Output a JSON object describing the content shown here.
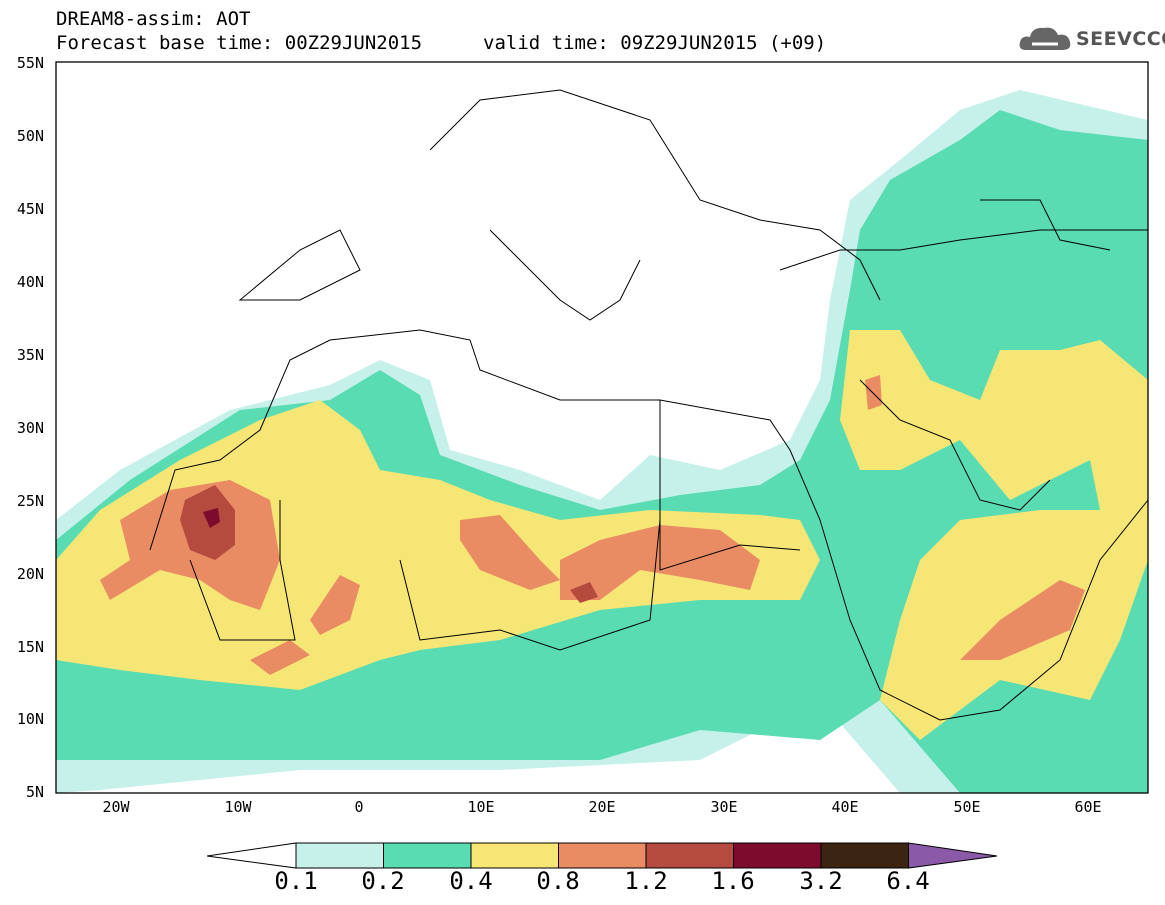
{
  "header": {
    "title_line1": "DREAM8-assim: AOT",
    "base_time": "Forecast base time: 00Z29JUN2015",
    "valid_time": "valid time: 09Z29JUN2015 (+09)",
    "logo_text": "SEEVCCC"
  },
  "map": {
    "lat_labels": [
      "55N",
      "50N",
      "45N",
      "40N",
      "35N",
      "30N",
      "25N",
      "20N",
      "15N",
      "10N",
      "5N"
    ],
    "lon_labels": [
      "20W",
      "10W",
      "0",
      "10E",
      "20E",
      "30E",
      "40E",
      "50E",
      "60E"
    ],
    "extent": {
      "lon_min": -25,
      "lon_max": 65,
      "lat_min": 5,
      "lat_max": 55
    }
  },
  "colorbar": {
    "levels": [
      "0.1",
      "0.2",
      "0.4",
      "0.8",
      "1.2",
      "1.6",
      "3.2",
      "6.4"
    ],
    "colors": [
      "#c6f0ea",
      "#5adcb2",
      "#f5e676",
      "#e98c64",
      "#b54a3e",
      "#7d0b2e",
      "#3b2412",
      "#8a5aa8"
    ]
  }
}
